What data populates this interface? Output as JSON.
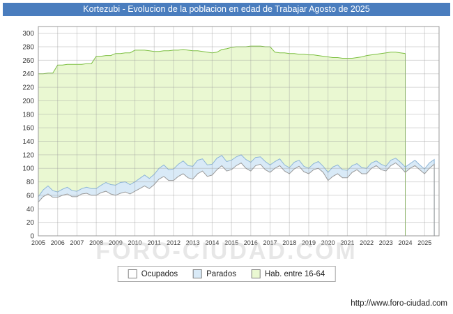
{
  "title": "Kortezubi - Evolucion de la poblacion en edad de Trabajar Agosto de 2025",
  "watermark": "FORO-CIUDAD.COM",
  "footer": {
    "url": "http://www.foro-ciudad.com"
  },
  "colors": {
    "title_bg": "#4a7dbe",
    "title_text": "#ffffff",
    "plot_border": "#9a9a9a",
    "grid": "#9a9a9a",
    "axis_text": "#3a3a3a",
    "ocupados_fill": "#ffffff",
    "ocupados_line": "#999999",
    "parados_fill": "#d9eaf7",
    "parados_line": "#8cb4d6",
    "hab_fill": "#eaf8d2",
    "hab_line": "#7cbf40",
    "watermark": "#cccccc",
    "url_text": "#1a1a1a"
  },
  "legend": [
    {
      "label": "Ocupados",
      "swatch": "ocupados"
    },
    {
      "label": "Parados",
      "swatch": "parados"
    },
    {
      "label": "Hab. entre 16-64",
      "swatch": "hab"
    }
  ],
  "chart_data": {
    "type": "area",
    "title": "Kortezubi - Evolucion de la poblacion en edad de Trabajar Agosto de 2025",
    "xlabel": "",
    "ylabel": "",
    "xlim": [
      2005,
      2025.75
    ],
    "ylim": [
      0,
      310
    ],
    "x_ticks": [
      2005,
      2006,
      2007,
      2008,
      2009,
      2010,
      2011,
      2012,
      2013,
      2014,
      2015,
      2016,
      2017,
      2018,
      2019,
      2020,
      2021,
      2022,
      2023,
      2024,
      2025
    ],
    "y_ticks": [
      0,
      20,
      40,
      60,
      80,
      100,
      120,
      140,
      160,
      180,
      200,
      220,
      240,
      260,
      280,
      300
    ],
    "grid": true,
    "legend_position": "bottom",
    "stacking_note": "Ocupados and Parados are stacked; Hab. entre 16-64 is a separate total band ending early 2024",
    "x": [
      2005,
      2005.25,
      2005.5,
      2005.75,
      2006,
      2006.25,
      2006.5,
      2006.75,
      2007,
      2007.25,
      2007.5,
      2007.75,
      2008,
      2008.25,
      2008.5,
      2008.75,
      2009,
      2009.25,
      2009.5,
      2009.75,
      2010,
      2010.25,
      2010.5,
      2010.75,
      2011,
      2011.25,
      2011.5,
      2011.75,
      2012,
      2012.25,
      2012.5,
      2012.75,
      2013,
      2013.25,
      2013.5,
      2013.75,
      2014,
      2014.25,
      2014.5,
      2014.75,
      2015,
      2015.25,
      2015.5,
      2015.75,
      2016,
      2016.25,
      2016.5,
      2016.75,
      2017,
      2017.25,
      2017.5,
      2017.75,
      2018,
      2018.25,
      2018.5,
      2018.75,
      2019,
      2019.25,
      2019.5,
      2019.75,
      2020,
      2020.25,
      2020.5,
      2020.75,
      2021,
      2021.25,
      2021.5,
      2021.75,
      2022,
      2022.25,
      2022.5,
      2022.75,
      2023,
      2023.25,
      2023.5,
      2023.75,
      2024,
      2024.25,
      2024.5,
      2024.75,
      2025,
      2025.25,
      2025.5
    ],
    "series": [
      {
        "name": "Ocupados",
        "stacked": true,
        "values": [
          50,
          58,
          62,
          57,
          57,
          60,
          62,
          58,
          58,
          62,
          63,
          60,
          60,
          64,
          66,
          62,
          60,
          63,
          65,
          62,
          66,
          70,
          74,
          70,
          76,
          84,
          88,
          82,
          82,
          88,
          92,
          86,
          84,
          92,
          96,
          88,
          90,
          98,
          104,
          96,
          98,
          104,
          108,
          100,
          96,
          104,
          106,
          98,
          94,
          100,
          104,
          96,
          92,
          99,
          103,
          95,
          92,
          98,
          100,
          94,
          82,
          88,
          92,
          86,
          86,
          94,
          98,
          92,
          92,
          100,
          104,
          98,
          96,
          104,
          108,
          102,
          94,
          100,
          104,
          98,
          92,
          100,
          106
        ]
      },
      {
        "name": "Parados",
        "stacked": true,
        "values": [
          8,
          10,
          12,
          10,
          8,
          9,
          10,
          9,
          8,
          8,
          9,
          10,
          10,
          11,
          13,
          14,
          15,
          16,
          15,
          14,
          14,
          15,
          16,
          15,
          15,
          16,
          17,
          16,
          17,
          18,
          19,
          18,
          19,
          20,
          18,
          17,
          16,
          17,
          15,
          14,
          14,
          13,
          12,
          13,
          13,
          12,
          11,
          12,
          11,
          10,
          10,
          9,
          9,
          10,
          9,
          8,
          8,
          9,
          10,
          9,
          12,
          14,
          13,
          12,
          11,
          10,
          9,
          9,
          8,
          8,
          7,
          8,
          7,
          8,
          7,
          7,
          8,
          7,
          8,
          7,
          7,
          8,
          7
        ]
      },
      {
        "name": "Hab. entre 16-64",
        "stacked": false,
        "values": [
          240,
          240,
          241,
          241,
          253,
          253,
          254,
          254,
          254,
          254,
          255,
          255,
          266,
          266,
          267,
          267,
          270,
          270,
          271,
          271,
          275,
          275,
          275,
          274,
          273,
          273,
          274,
          274,
          275,
          275,
          276,
          275,
          274,
          274,
          273,
          272,
          271,
          272,
          276,
          277,
          279,
          280,
          280,
          280,
          281,
          281,
          281,
          280,
          280,
          272,
          271,
          271,
          270,
          270,
          269,
          269,
          268,
          268,
          267,
          266,
          265,
          264,
          264,
          263,
          263,
          263,
          264,
          265,
          267,
          268,
          269,
          270,
          271,
          272,
          272,
          271,
          270,
          null,
          null,
          null,
          null,
          null,
          null
        ]
      }
    ]
  }
}
